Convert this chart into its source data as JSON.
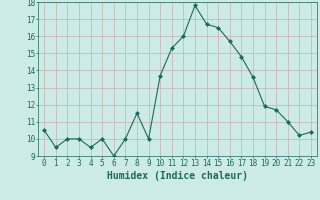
{
  "x": [
    0,
    1,
    2,
    3,
    4,
    5,
    6,
    7,
    8,
    9,
    10,
    11,
    12,
    13,
    14,
    15,
    16,
    17,
    18,
    19,
    20,
    21,
    22,
    23
  ],
  "y": [
    10.5,
    9.5,
    10.0,
    10.0,
    9.5,
    10.0,
    9.0,
    10.0,
    11.5,
    10.0,
    13.7,
    15.3,
    16.0,
    17.8,
    16.7,
    16.5,
    15.7,
    14.8,
    13.6,
    11.9,
    11.7,
    11.0,
    10.2,
    10.4
  ],
  "line_color": "#1a6b5a",
  "marker": "D",
  "marker_size": 2.0,
  "background_color": "#cceae6",
  "grid_color": "#c8b0b0",
  "xlabel": "Humidex (Indice chaleur)",
  "ylim": [
    9,
    18
  ],
  "xlim_min": -0.5,
  "xlim_max": 23.5,
  "yticks": [
    9,
    10,
    11,
    12,
    13,
    14,
    15,
    16,
    17,
    18
  ],
  "xticks": [
    0,
    1,
    2,
    3,
    4,
    5,
    6,
    7,
    8,
    9,
    10,
    11,
    12,
    13,
    14,
    15,
    16,
    17,
    18,
    19,
    20,
    21,
    22,
    23
  ],
  "tick_fontsize": 5.5,
  "xlabel_fontsize": 7.0,
  "tick_color": "#1a6b5a",
  "axis_color": "#1a6b5a",
  "linewidth": 0.8
}
